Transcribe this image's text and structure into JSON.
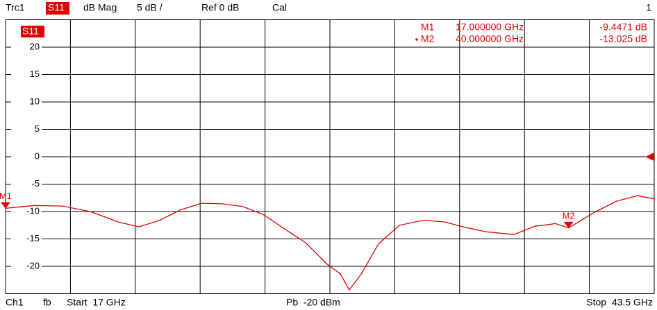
{
  "chart_data": {
    "type": "line",
    "header": {
      "trace": "Trc1",
      "param": "S11",
      "format": "dB Mag",
      "scale": "5 dB /",
      "ref": "Ref 0 dB",
      "cal": "Cal",
      "window": "1"
    },
    "trace_label": "S11",
    "footer": {
      "channel": "Ch1",
      "mode": "fb",
      "start": "Start  17 GHz",
      "power": "Pb  -20 dBm",
      "stop": "Stop  43.5 GHz"
    },
    "xlim": [
      17,
      43.5
    ],
    "ylim": [
      -25,
      25
    ],
    "yticks": [
      20,
      15,
      10,
      5,
      0,
      -5,
      -10,
      -15,
      -20
    ],
    "ref_level": 0,
    "grid": true,
    "series": [
      {
        "name": "S11",
        "color": "#e00000",
        "x": [
          17.0,
          18.19,
          19.33,
          20.46,
          21.6,
          22.45,
          23.3,
          24.15,
          25.0,
          25.85,
          26.7,
          27.55,
          28.41,
          29.26,
          30.11,
          30.68,
          31.04,
          31.53,
          32.24,
          33.09,
          34.08,
          34.93,
          35.78,
          36.63,
          37.77,
          38.62,
          39.47,
          40.0,
          41.12,
          41.97,
          42.82,
          43.5
        ],
        "values": [
          -9.4,
          -8.9,
          -9.0,
          -10.0,
          -11.9,
          -12.8,
          -11.6,
          -9.7,
          -8.5,
          -8.6,
          -9.1,
          -10.6,
          -13.2,
          -15.7,
          -19.5,
          -21.4,
          -24.3,
          -21.4,
          -15.9,
          -12.5,
          -11.6,
          -11.9,
          -12.9,
          -13.7,
          -14.2,
          -12.7,
          -12.2,
          -13.0,
          -10.0,
          -8.1,
          -7.1,
          -7.7
        ]
      }
    ],
    "markers": [
      {
        "name": "M1",
        "x": 17,
        "y": -9.4471,
        "x_label": "17.000000 GHz",
        "y_label": "-9.4471 dB"
      },
      {
        "name": "M2",
        "x": 40,
        "y": -13.025,
        "x_label": "40.000000 GHz",
        "y_label": "-13.025 dB"
      }
    ]
  }
}
